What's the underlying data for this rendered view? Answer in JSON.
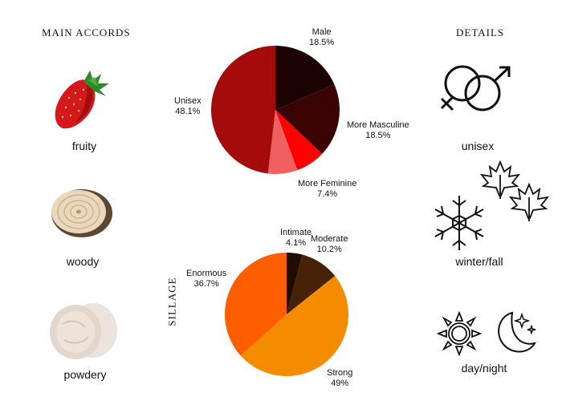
{
  "accords": {
    "title": "MAIN ACCORDS",
    "items": [
      {
        "label": "fruity",
        "icon": "strawberry-icon"
      },
      {
        "label": "woody",
        "icon": "wood-slice-icon"
      },
      {
        "label": "powdery",
        "icon": "powder-icon"
      }
    ]
  },
  "details": {
    "title": "DETAILS",
    "gender_label": "unisex",
    "season_label": "winter/fall",
    "time_label": "day/night"
  },
  "sillage_title": "SILLAGE",
  "colors": {
    "male": "#1c0202",
    "more_masculine": "#3b0404",
    "more_feminine": "#ff0000",
    "female": "#f06060",
    "unisex": "#a50b0b",
    "intimate": "#1f0d02",
    "moderate": "#472208",
    "strong": "#f58c00",
    "enormous": "#fd5e00"
  },
  "chart_data": [
    {
      "type": "pie",
      "title": "",
      "slices": [
        {
          "label": "Male",
          "value": 18.5,
          "pct_label": "18.5%"
        },
        {
          "label": "More Masculine",
          "value": 18.5,
          "pct_label": "18.5%"
        },
        {
          "label": "More Feminine",
          "value": 7.4,
          "pct_label": "7.4%"
        },
        {
          "label": "",
          "value": 7.4,
          "pct_label": ""
        },
        {
          "label": "Unisex",
          "value": 48.1,
          "pct_label": "48.1%"
        }
      ]
    },
    {
      "type": "pie",
      "title": "SILLAGE",
      "slices": [
        {
          "label": "Intimate",
          "value": 4.1,
          "pct_label": "4.1%"
        },
        {
          "label": "Moderate",
          "value": 10.2,
          "pct_label": "10.2%"
        },
        {
          "label": "Strong",
          "value": 49,
          "pct_label": "49%"
        },
        {
          "label": "Enormous",
          "value": 36.7,
          "pct_label": "36.7%"
        }
      ]
    }
  ]
}
